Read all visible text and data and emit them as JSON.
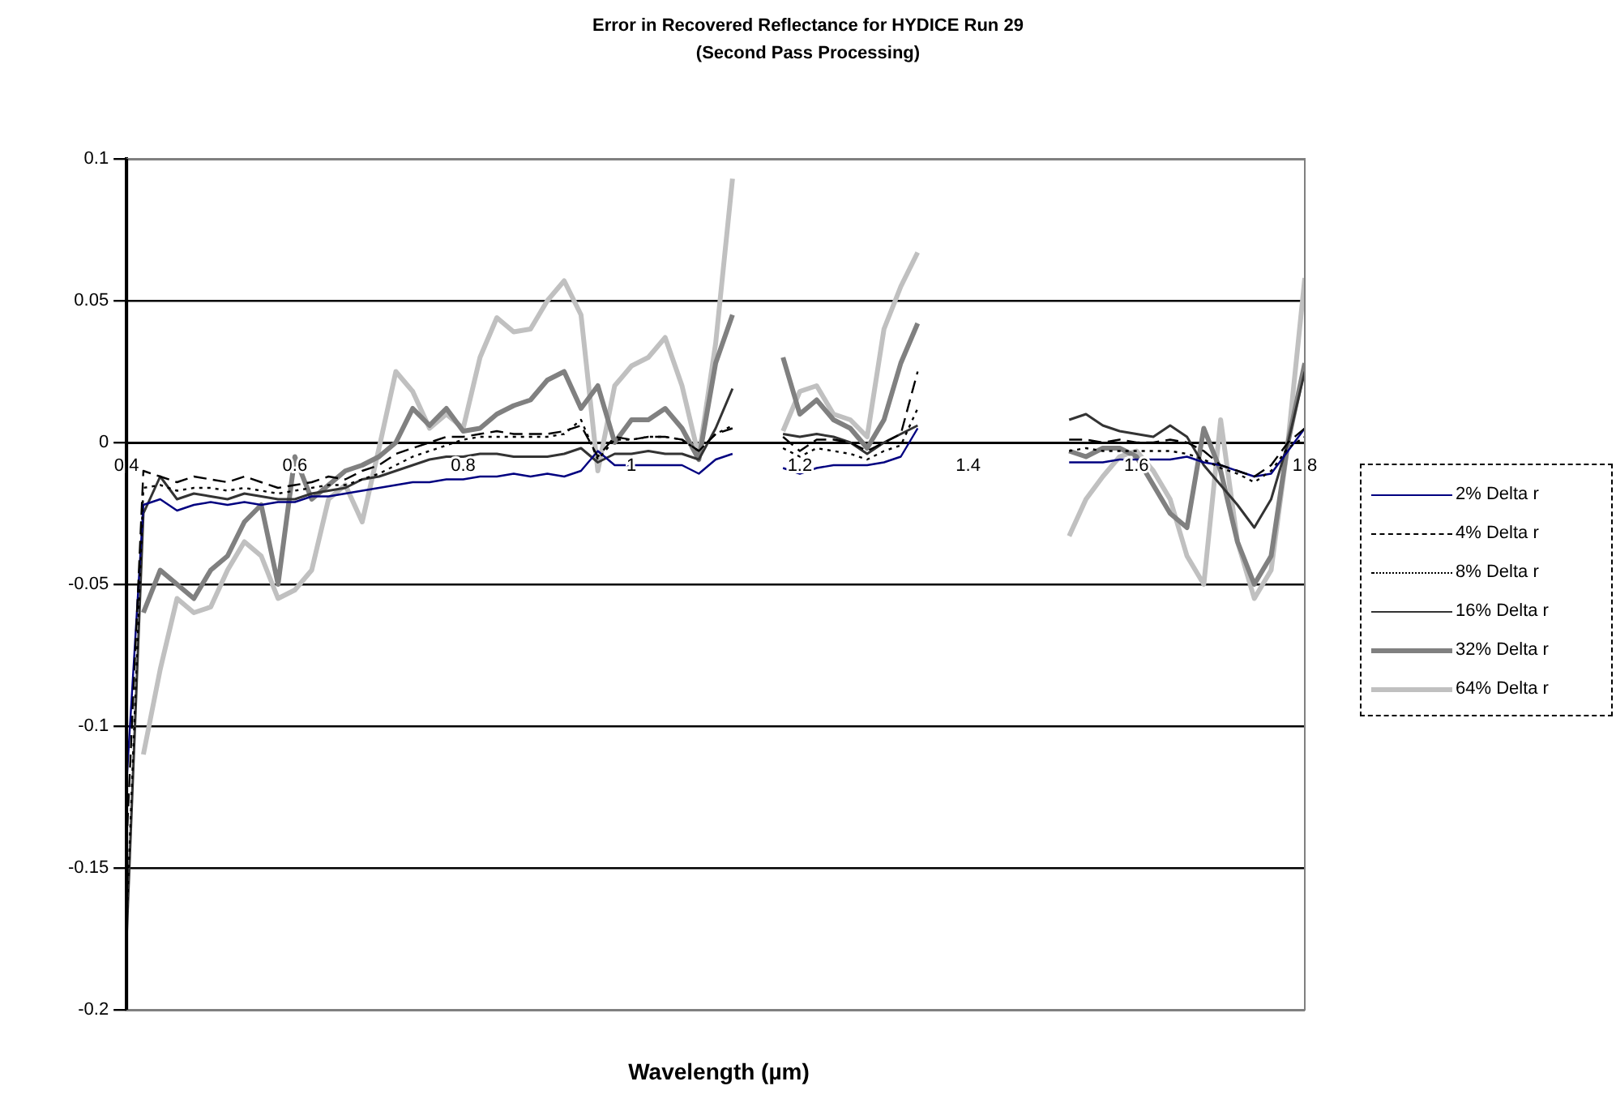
{
  "chart_data": {
    "type": "line",
    "title": "Error in Recovered Reflectance for HYDICE Run 29",
    "subtitle": "(Second Pass Processing)",
    "xlabel": "Wavelength (µm)",
    "x": [
      0.4,
      0.42,
      0.44,
      0.46,
      0.48,
      0.5,
      0.52,
      0.54,
      0.56,
      0.58,
      0.6,
      0.62,
      0.64,
      0.66,
      0.68,
      0.7,
      0.72,
      0.74,
      0.76,
      0.78,
      0.8,
      0.82,
      0.84,
      0.86,
      0.88,
      0.9,
      0.92,
      0.94,
      0.96,
      0.98,
      1.0,
      1.02,
      1.04,
      1.06,
      1.08,
      1.1,
      1.12,
      1.14,
      1.18,
      1.2,
      1.22,
      1.24,
      1.26,
      1.28,
      1.3,
      1.32,
      1.34,
      1.44,
      1.52,
      1.54,
      1.56,
      1.58,
      1.6,
      1.62,
      1.64,
      1.66,
      1.68,
      1.7,
      1.72,
      1.74,
      1.76,
      1.78,
      1.8
    ],
    "series": [
      {
        "name": "2% Delta r",
        "color": "#000080",
        "line_style": "solid",
        "values": [
          -0.12,
          -0.022,
          -0.02,
          -0.024,
          -0.022,
          -0.021,
          -0.022,
          -0.021,
          -0.022,
          -0.021,
          -0.021,
          -0.019,
          -0.019,
          -0.018,
          -0.017,
          -0.016,
          -0.015,
          -0.014,
          -0.014,
          -0.013,
          -0.013,
          -0.012,
          -0.012,
          -0.011,
          -0.012,
          -0.011,
          -0.012,
          -0.01,
          -0.003,
          -0.008,
          -0.008,
          -0.008,
          -0.008,
          -0.008,
          -0.011,
          -0.006,
          -0.004,
          null,
          -0.009,
          -0.011,
          -0.009,
          -0.008,
          -0.008,
          -0.008,
          -0.007,
          -0.005,
          0.005,
          null,
          -0.007,
          -0.007,
          -0.007,
          -0.006,
          -0.006,
          -0.006,
          -0.006,
          -0.005,
          -0.007,
          -0.008,
          -0.01,
          -0.012,
          -0.011,
          -0.003,
          0.005
        ]
      },
      {
        "name": "4% Delta r",
        "color": "#000000",
        "line_style": "dashed",
        "values": [
          -0.142,
          -0.01,
          -0.012,
          -0.014,
          -0.012,
          -0.013,
          -0.014,
          -0.012,
          -0.014,
          -0.016,
          -0.015,
          -0.014,
          -0.012,
          -0.013,
          -0.01,
          -0.008,
          -0.004,
          -0.002,
          0.0,
          0.002,
          0.002,
          0.003,
          0.004,
          0.003,
          0.003,
          0.003,
          0.004,
          0.006,
          -0.005,
          0.002,
          0.001,
          0.002,
          0.002,
          0.001,
          -0.003,
          0.003,
          0.005,
          null,
          0.002,
          -0.003,
          0.001,
          0.001,
          0.0,
          -0.003,
          0.0,
          0.003,
          0.025,
          null,
          0.001,
          0.001,
          0.0,
          0.001,
          0.0,
          0.0,
          0.001,
          0.0,
          -0.003,
          -0.008,
          -0.01,
          -0.012,
          -0.008,
          0.0,
          0.005
        ]
      },
      {
        "name": "8% Delta r",
        "color": "#000000",
        "line_style": "dotted",
        "values": [
          -0.17,
          -0.016,
          -0.015,
          -0.017,
          -0.016,
          -0.016,
          -0.017,
          -0.016,
          -0.017,
          -0.018,
          -0.017,
          -0.016,
          -0.015,
          -0.015,
          -0.013,
          -0.011,
          -0.008,
          -0.005,
          -0.003,
          -0.001,
          0.001,
          0.002,
          0.002,
          0.002,
          0.002,
          0.002,
          0.003,
          0.008,
          -0.006,
          0.001,
          0.001,
          0.002,
          0.002,
          0.001,
          -0.003,
          0.003,
          0.006,
          null,
          -0.002,
          -0.005,
          -0.002,
          -0.003,
          -0.004,
          -0.006,
          -0.003,
          -0.001,
          0.012,
          null,
          -0.003,
          -0.002,
          -0.003,
          -0.003,
          -0.003,
          -0.003,
          -0.003,
          -0.004,
          -0.006,
          -0.009,
          -0.011,
          -0.014,
          -0.01,
          -0.002,
          0.002
        ]
      },
      {
        "name": "16% Delta r",
        "color": "#333333",
        "line_style": "solid",
        "values": [
          -0.175,
          -0.025,
          -0.012,
          -0.02,
          -0.018,
          -0.019,
          -0.02,
          -0.018,
          -0.019,
          -0.02,
          -0.02,
          -0.018,
          -0.017,
          -0.016,
          -0.013,
          -0.012,
          -0.01,
          -0.008,
          -0.006,
          -0.005,
          -0.005,
          -0.004,
          -0.004,
          -0.005,
          -0.005,
          -0.005,
          -0.004,
          -0.002,
          -0.007,
          -0.004,
          -0.004,
          -0.003,
          -0.004,
          -0.004,
          -0.006,
          0.005,
          0.019,
          null,
          0.003,
          0.002,
          0.003,
          0.002,
          0.0,
          -0.004,
          0.0,
          0.003,
          0.006,
          null,
          0.008,
          0.01,
          0.006,
          0.004,
          0.003,
          0.002,
          0.006,
          0.002,
          -0.008,
          -0.015,
          -0.022,
          -0.03,
          -0.02,
          0.0,
          0.025
        ]
      },
      {
        "name": "32% Delta r",
        "color": "#808080",
        "line_style": "solid",
        "values": [
          null,
          -0.06,
          -0.045,
          -0.05,
          -0.055,
          -0.045,
          -0.04,
          -0.028,
          -0.022,
          -0.05,
          -0.005,
          -0.02,
          -0.015,
          -0.01,
          -0.008,
          -0.005,
          0.0,
          0.012,
          0.006,
          0.012,
          0.004,
          0.005,
          0.01,
          0.013,
          0.015,
          0.022,
          0.025,
          0.012,
          0.02,
          0.0,
          0.008,
          0.008,
          0.012,
          0.005,
          -0.006,
          0.028,
          0.045,
          null,
          0.03,
          0.01,
          0.015,
          0.008,
          0.005,
          -0.002,
          0.008,
          0.028,
          0.042,
          null,
          -0.003,
          -0.005,
          -0.002,
          -0.002,
          -0.005,
          -0.015,
          -0.025,
          -0.03,
          0.005,
          -0.01,
          -0.035,
          -0.05,
          -0.04,
          0.0,
          0.028
        ]
      },
      {
        "name": "64% Delta r",
        "color": "#c0c0c0",
        "line_style": "solid",
        "values": [
          null,
          -0.11,
          -0.08,
          -0.055,
          -0.06,
          -0.058,
          -0.045,
          -0.035,
          -0.04,
          -0.055,
          -0.052,
          -0.045,
          -0.02,
          -0.015,
          -0.028,
          -0.002,
          0.025,
          0.018,
          0.005,
          0.01,
          0.005,
          0.03,
          0.044,
          0.039,
          0.04,
          0.05,
          0.057,
          0.045,
          -0.01,
          0.02,
          0.027,
          0.03,
          0.037,
          0.02,
          -0.005,
          0.035,
          0.093,
          null,
          0.004,
          0.018,
          0.02,
          0.01,
          0.008,
          0.002,
          0.04,
          0.055,
          0.067,
          null,
          -0.033,
          -0.02,
          -0.012,
          -0.005,
          -0.003,
          -0.01,
          -0.02,
          -0.04,
          -0.05,
          0.008,
          -0.035,
          -0.055,
          -0.045,
          0.0,
          0.058
        ]
      }
    ],
    "xlim": [
      0.4,
      1.8
    ],
    "xticks": [
      0.4,
      0.6,
      0.8,
      1,
      1.2,
      1.4,
      1.6,
      1.8
    ],
    "ylim": [
      -0.2,
      0.1
    ],
    "yticks": [
      -0.2,
      -0.15,
      -0.1,
      -0.05,
      0,
      0.05,
      0.1
    ],
    "grid": "y",
    "legend": "right",
    "marker": "none"
  }
}
